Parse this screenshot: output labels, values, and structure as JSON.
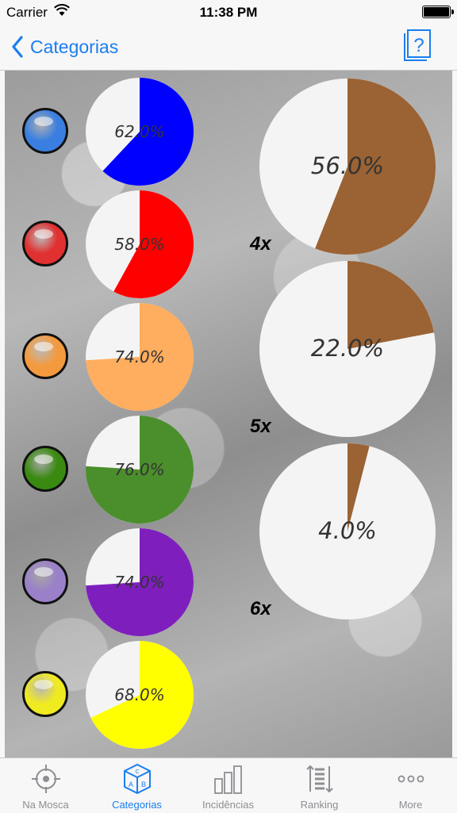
{
  "status_bar": {
    "carrier": "Carrier",
    "time": "11:38 PM"
  },
  "nav": {
    "back_label": "Categorias",
    "help_symbol": "?"
  },
  "colors": {
    "accent": "#1a7ef0",
    "brown": "#9b6233",
    "pie_bg": "#f4f4f4"
  },
  "categories": [
    {
      "name": "blue",
      "color": "#0000ff",
      "ball_color": "#3a7fe0",
      "percent": 62.0,
      "label": "62.0%"
    },
    {
      "name": "red",
      "color": "#ff0000",
      "ball_color": "#e03030",
      "percent": 58.0,
      "label": "58.0%"
    },
    {
      "name": "orange",
      "color": "#ffad5e",
      "ball_color": "#f49a3e",
      "percent": 74.0,
      "label": "74.0%"
    },
    {
      "name": "green",
      "color": "#4b8e2c",
      "ball_color": "#3a8a12",
      "percent": 76.0,
      "label": "76.0%"
    },
    {
      "name": "purple",
      "color": "#7e1fbd",
      "ball_color": "#9a80c8",
      "percent": 74.0,
      "label": "74.0%"
    },
    {
      "name": "yellow",
      "color": "#ffff00",
      "ball_color": "#f0ea20",
      "percent": 68.0,
      "label": "68.0%"
    }
  ],
  "multiples": [
    {
      "label": "4x",
      "percent": 56.0,
      "value_label": "56.0%"
    },
    {
      "label": "5x",
      "percent": 22.0,
      "value_label": "22.0%"
    },
    {
      "label": "6x",
      "percent": 4.0,
      "value_label": "4.0%"
    }
  ],
  "tabs": [
    {
      "label": "Na Mosca",
      "icon": "target-icon",
      "active": false
    },
    {
      "label": "Categorias",
      "icon": "abc-blocks-icon",
      "active": true
    },
    {
      "label": "Incidências",
      "icon": "bar-chart-icon",
      "active": false
    },
    {
      "label": "Ranking",
      "icon": "ranking-icon",
      "active": false
    },
    {
      "label": "More",
      "icon": "more-icon",
      "active": false
    }
  ]
}
